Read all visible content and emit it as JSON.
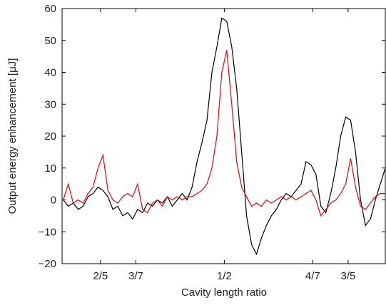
{
  "chart_data": {
    "type": "line",
    "xlabel": "Cavity length ratio",
    "ylabel": "Output energy enhancement [μJ]",
    "x": [
      0.37,
      0.374,
      0.378,
      0.382,
      0.386,
      0.39,
      0.394,
      0.398,
      0.402,
      0.406,
      0.41,
      0.414,
      0.418,
      0.422,
      0.426,
      0.43,
      0.434,
      0.438,
      0.442,
      0.446,
      0.45,
      0.454,
      0.458,
      0.462,
      0.466,
      0.47,
      0.474,
      0.478,
      0.482,
      0.486,
      0.49,
      0.494,
      0.498,
      0.502,
      0.506,
      0.51,
      0.514,
      0.518,
      0.522,
      0.526,
      0.53,
      0.534,
      0.538,
      0.542,
      0.546,
      0.55,
      0.554,
      0.558,
      0.562,
      0.566,
      0.57,
      0.574,
      0.578,
      0.582,
      0.586,
      0.59,
      0.594,
      0.598,
      0.602,
      0.606,
      0.61,
      0.614,
      0.618,
      0.622,
      0.626,
      0.63
    ],
    "series": [
      {
        "color": "#000000",
        "values": [
          0,
          -2,
          -1,
          -3,
          -2,
          1,
          2,
          4,
          3,
          1,
          -3,
          -2,
          -5,
          -4,
          -6,
          -3,
          -4,
          -1,
          -2,
          0,
          -1,
          1,
          -2,
          0,
          2,
          0,
          4,
          12,
          18,
          25,
          40,
          48,
          57,
          56,
          48,
          35,
          15,
          -5,
          -14,
          -17,
          -12,
          -8,
          -5,
          -3,
          0,
          2,
          1,
          3,
          5,
          12,
          11,
          8,
          -2,
          -4,
          2,
          10,
          20,
          26,
          25,
          15,
          0,
          -8,
          -6,
          0,
          5,
          10
        ]
      },
      {
        "color": "#ee0000",
        "values": [
          0,
          5,
          -1,
          0,
          -1,
          2,
          4,
          10,
          14,
          3,
          0,
          -1,
          1,
          2,
          1,
          5,
          -3,
          -4,
          -1,
          0,
          -2,
          1,
          0,
          1,
          0,
          1,
          1,
          2,
          3,
          5,
          10,
          20,
          40,
          47,
          30,
          12,
          4,
          1,
          -2,
          -1,
          -2,
          0,
          -1,
          0,
          1,
          0,
          1,
          0,
          1,
          2,
          3,
          0,
          -5,
          -3,
          -1,
          0,
          2,
          5,
          13,
          4,
          -2,
          -3,
          -1,
          1,
          2,
          2
        ]
      }
    ],
    "xlim": [
      0.369,
      0.63
    ],
    "ylim": [
      -20,
      60
    ],
    "xticks": [
      {
        "value": 0.4,
        "label": "2/5"
      },
      {
        "value": 0.4286,
        "label": "3/7"
      },
      {
        "value": 0.5,
        "label": "1/2"
      },
      {
        "value": 0.5714,
        "label": "4/7"
      },
      {
        "value": 0.6,
        "label": "3/5"
      }
    ],
    "yticks": [
      {
        "value": -20,
        "label": "−20"
      },
      {
        "value": -10,
        "label": "−10"
      },
      0,
      10,
      20,
      30,
      40,
      50,
      60
    ]
  }
}
